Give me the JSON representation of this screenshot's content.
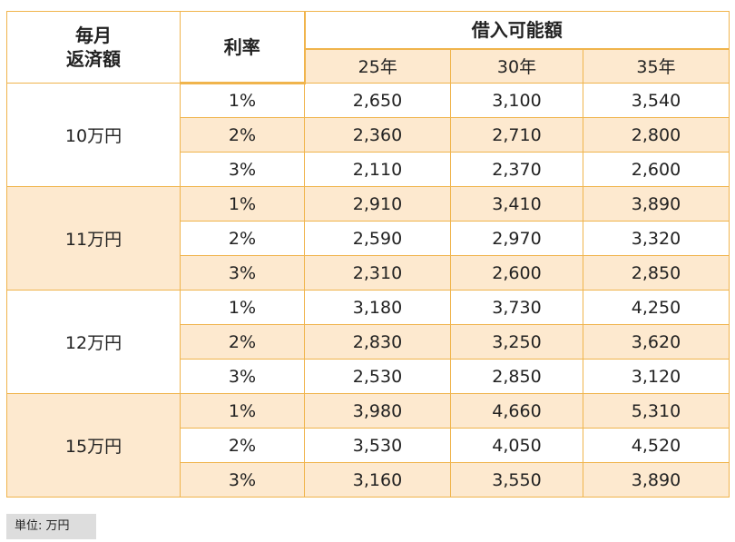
{
  "header": {
    "monthly_label_1": "毎月",
    "monthly_label_2": "返済額",
    "rate_label": "利率",
    "borrow_label": "借入可能額",
    "years": [
      "25年",
      "30年",
      "35年"
    ]
  },
  "groups": [
    {
      "monthly": "10万円",
      "rows": [
        {
          "rate": "1%",
          "values": [
            "2,650",
            "3,100",
            "3,540"
          ]
        },
        {
          "rate": "2%",
          "values": [
            "2,360",
            "2,710",
            "2,800"
          ]
        },
        {
          "rate": "3%",
          "values": [
            "2,110",
            "2,370",
            "2,600"
          ]
        }
      ]
    },
    {
      "monthly": "11万円",
      "rows": [
        {
          "rate": "1%",
          "values": [
            "2,910",
            "3,410",
            "3,890"
          ]
        },
        {
          "rate": "2%",
          "values": [
            "2,590",
            "2,970",
            "3,320"
          ]
        },
        {
          "rate": "3%",
          "values": [
            "2,310",
            "2,600",
            "2,850"
          ]
        }
      ]
    },
    {
      "monthly": "12万円",
      "rows": [
        {
          "rate": "1%",
          "values": [
            "3,180",
            "3,730",
            "4,250"
          ]
        },
        {
          "rate": "2%",
          "values": [
            "2,830",
            "3,250",
            "3,620"
          ]
        },
        {
          "rate": "3%",
          "values": [
            "2,530",
            "2,850",
            "3,120"
          ]
        }
      ]
    },
    {
      "monthly": "15万円",
      "rows": [
        {
          "rate": "1%",
          "values": [
            "3,980",
            "4,660",
            "5,310"
          ]
        },
        {
          "rate": "2%",
          "values": [
            "3,530",
            "4,050",
            "4,520"
          ]
        },
        {
          "rate": "3%",
          "values": [
            "3,160",
            "3,550",
            "3,890"
          ]
        }
      ]
    }
  ],
  "unit_note": "単位: 万円",
  "colors": {
    "border": "#f0b44c",
    "shade": "#fde9cf",
    "note_bg": "#dddddd"
  }
}
